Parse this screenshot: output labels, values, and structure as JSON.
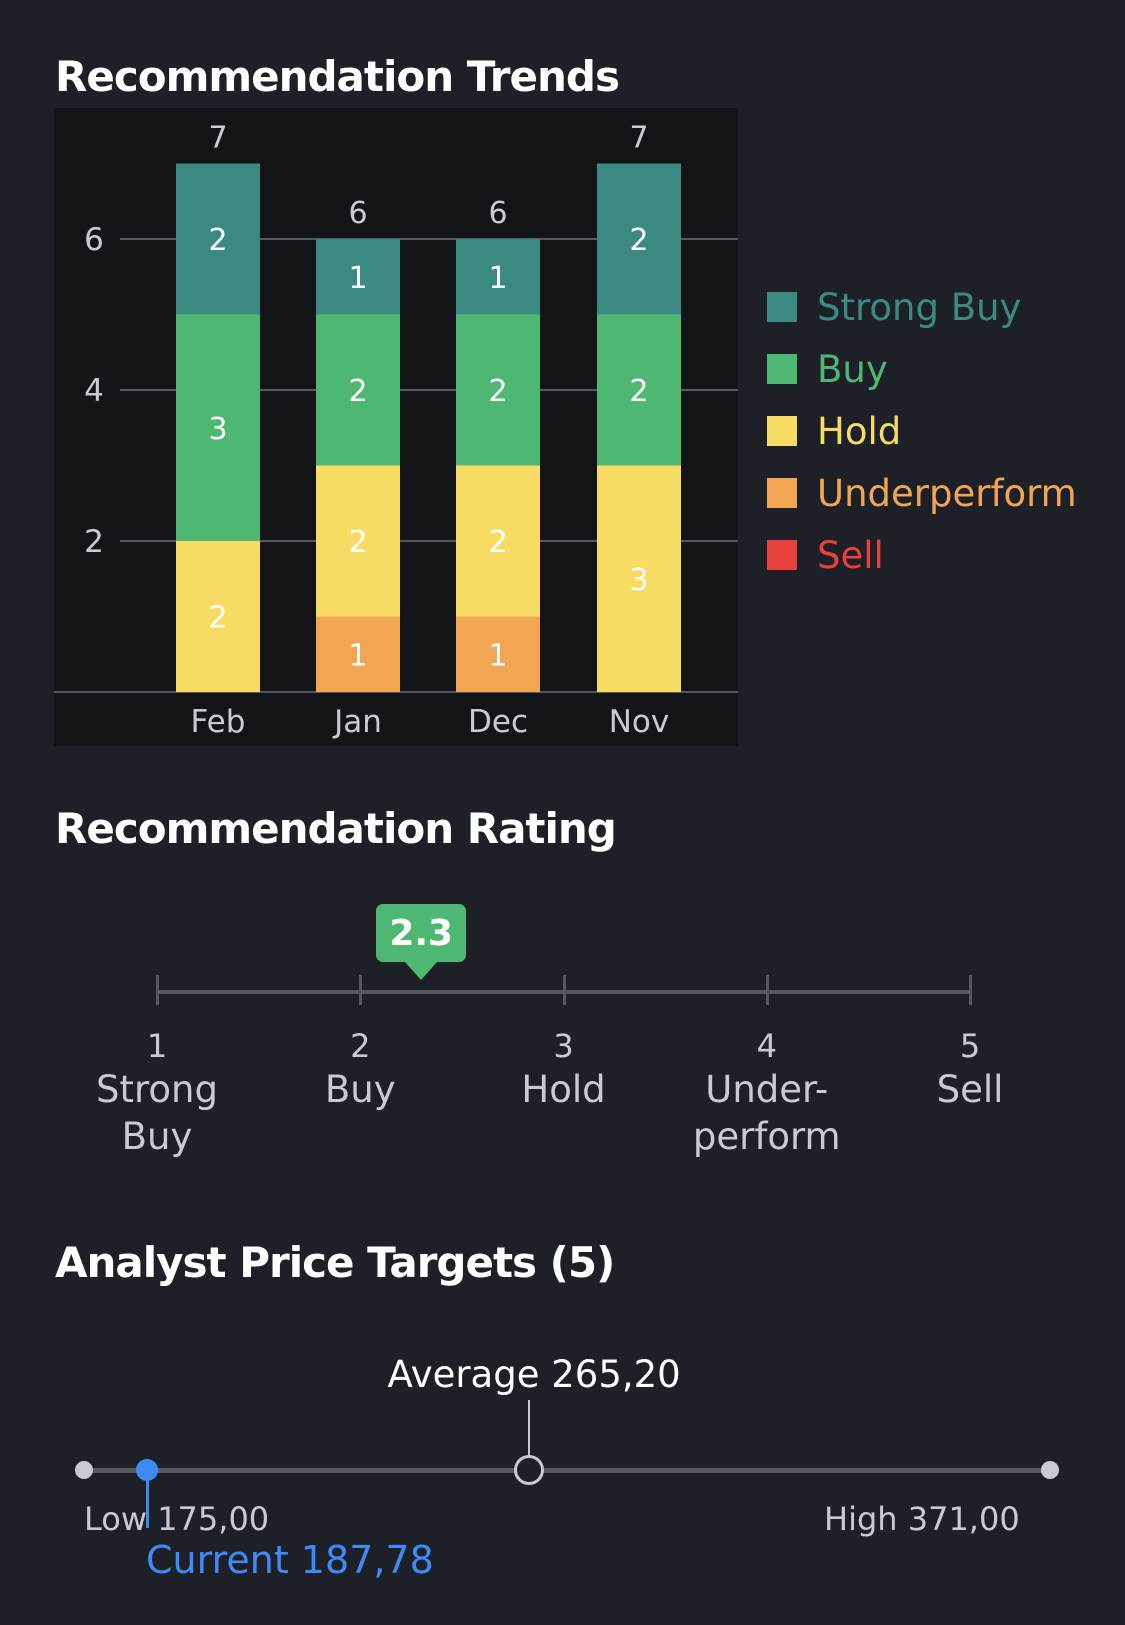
{
  "trends": {
    "title": "Recommendation Trends"
  },
  "rating": {
    "title": "Recommendation Rating",
    "value": 2.3,
    "value_label": "2.3",
    "scale": [
      {
        "num": "1",
        "word": "Strong\nBuy"
      },
      {
        "num": "2",
        "word": "Buy"
      },
      {
        "num": "3",
        "word": "Hold"
      },
      {
        "num": "4",
        "word": "Under-\nperform"
      },
      {
        "num": "5",
        "word": "Sell"
      }
    ]
  },
  "price_targets": {
    "title": "Analyst Price Targets (5)",
    "low": 175.0,
    "high": 371.0,
    "average": 265.2,
    "current": 187.78,
    "average_label": "Average 265,20",
    "low_label": "Low 175,00",
    "high_label": "High 371,00",
    "current_label": "Current 187,78"
  },
  "colors": {
    "strong_buy": "#3a8a82",
    "buy": "#4eb873",
    "hold": "#f8db63",
    "underperform": "#f2a552",
    "sell": "#e8403c",
    "accent_current": "#3d8bf7"
  },
  "chart_data": {
    "type": "bar",
    "stacked": true,
    "title": "Recommendation Trends",
    "categories": [
      "Feb",
      "Jan",
      "Dec",
      "Nov"
    ],
    "totals": [
      7,
      6,
      6,
      7
    ],
    "ylim": [
      0,
      7
    ],
    "yticks": [
      2,
      4,
      6
    ],
    "grid": true,
    "legend_position": "right",
    "series": [
      {
        "name": "Strong Buy",
        "key": "strong_buy",
        "values": [
          2,
          1,
          1,
          2
        ]
      },
      {
        "name": "Buy",
        "key": "buy",
        "values": [
          3,
          2,
          2,
          2
        ]
      },
      {
        "name": "Hold",
        "key": "hold",
        "values": [
          2,
          2,
          2,
          3
        ]
      },
      {
        "name": "Underperform",
        "key": "underperform",
        "values": [
          0,
          1,
          1,
          0
        ]
      },
      {
        "name": "Sell",
        "key": "sell",
        "values": [
          0,
          0,
          0,
          0
        ]
      }
    ]
  }
}
